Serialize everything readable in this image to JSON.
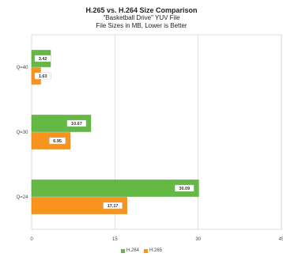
{
  "chart_data": {
    "type": "bar",
    "orientation": "horizontal",
    "title": "H.265 vs. H.264 Size Comparison",
    "subtitle_line1": "\"Basketball Drive\" YUV File",
    "subtitle_line2": "File Sizes in MB, Lower is Better",
    "categories": [
      "Q=40",
      "Q=30",
      "Q=24"
    ],
    "series": [
      {
        "name": "H.264",
        "color": "#63b944",
        "values": [
          3.42,
          10.67,
          30.09
        ]
      },
      {
        "name": "H.265",
        "color": "#f7941d",
        "values": [
          1.63,
          6.95,
          17.17
        ]
      }
    ],
    "value_labels": [
      [
        "3.42",
        "10.67",
        "30.09"
      ],
      [
        "1.63",
        "6.95",
        "17.17"
      ]
    ],
    "xlim": [
      0,
      45
    ],
    "xticks": [
      0,
      15,
      30,
      45
    ],
    "grid": true,
    "legend_position": "bottom"
  }
}
